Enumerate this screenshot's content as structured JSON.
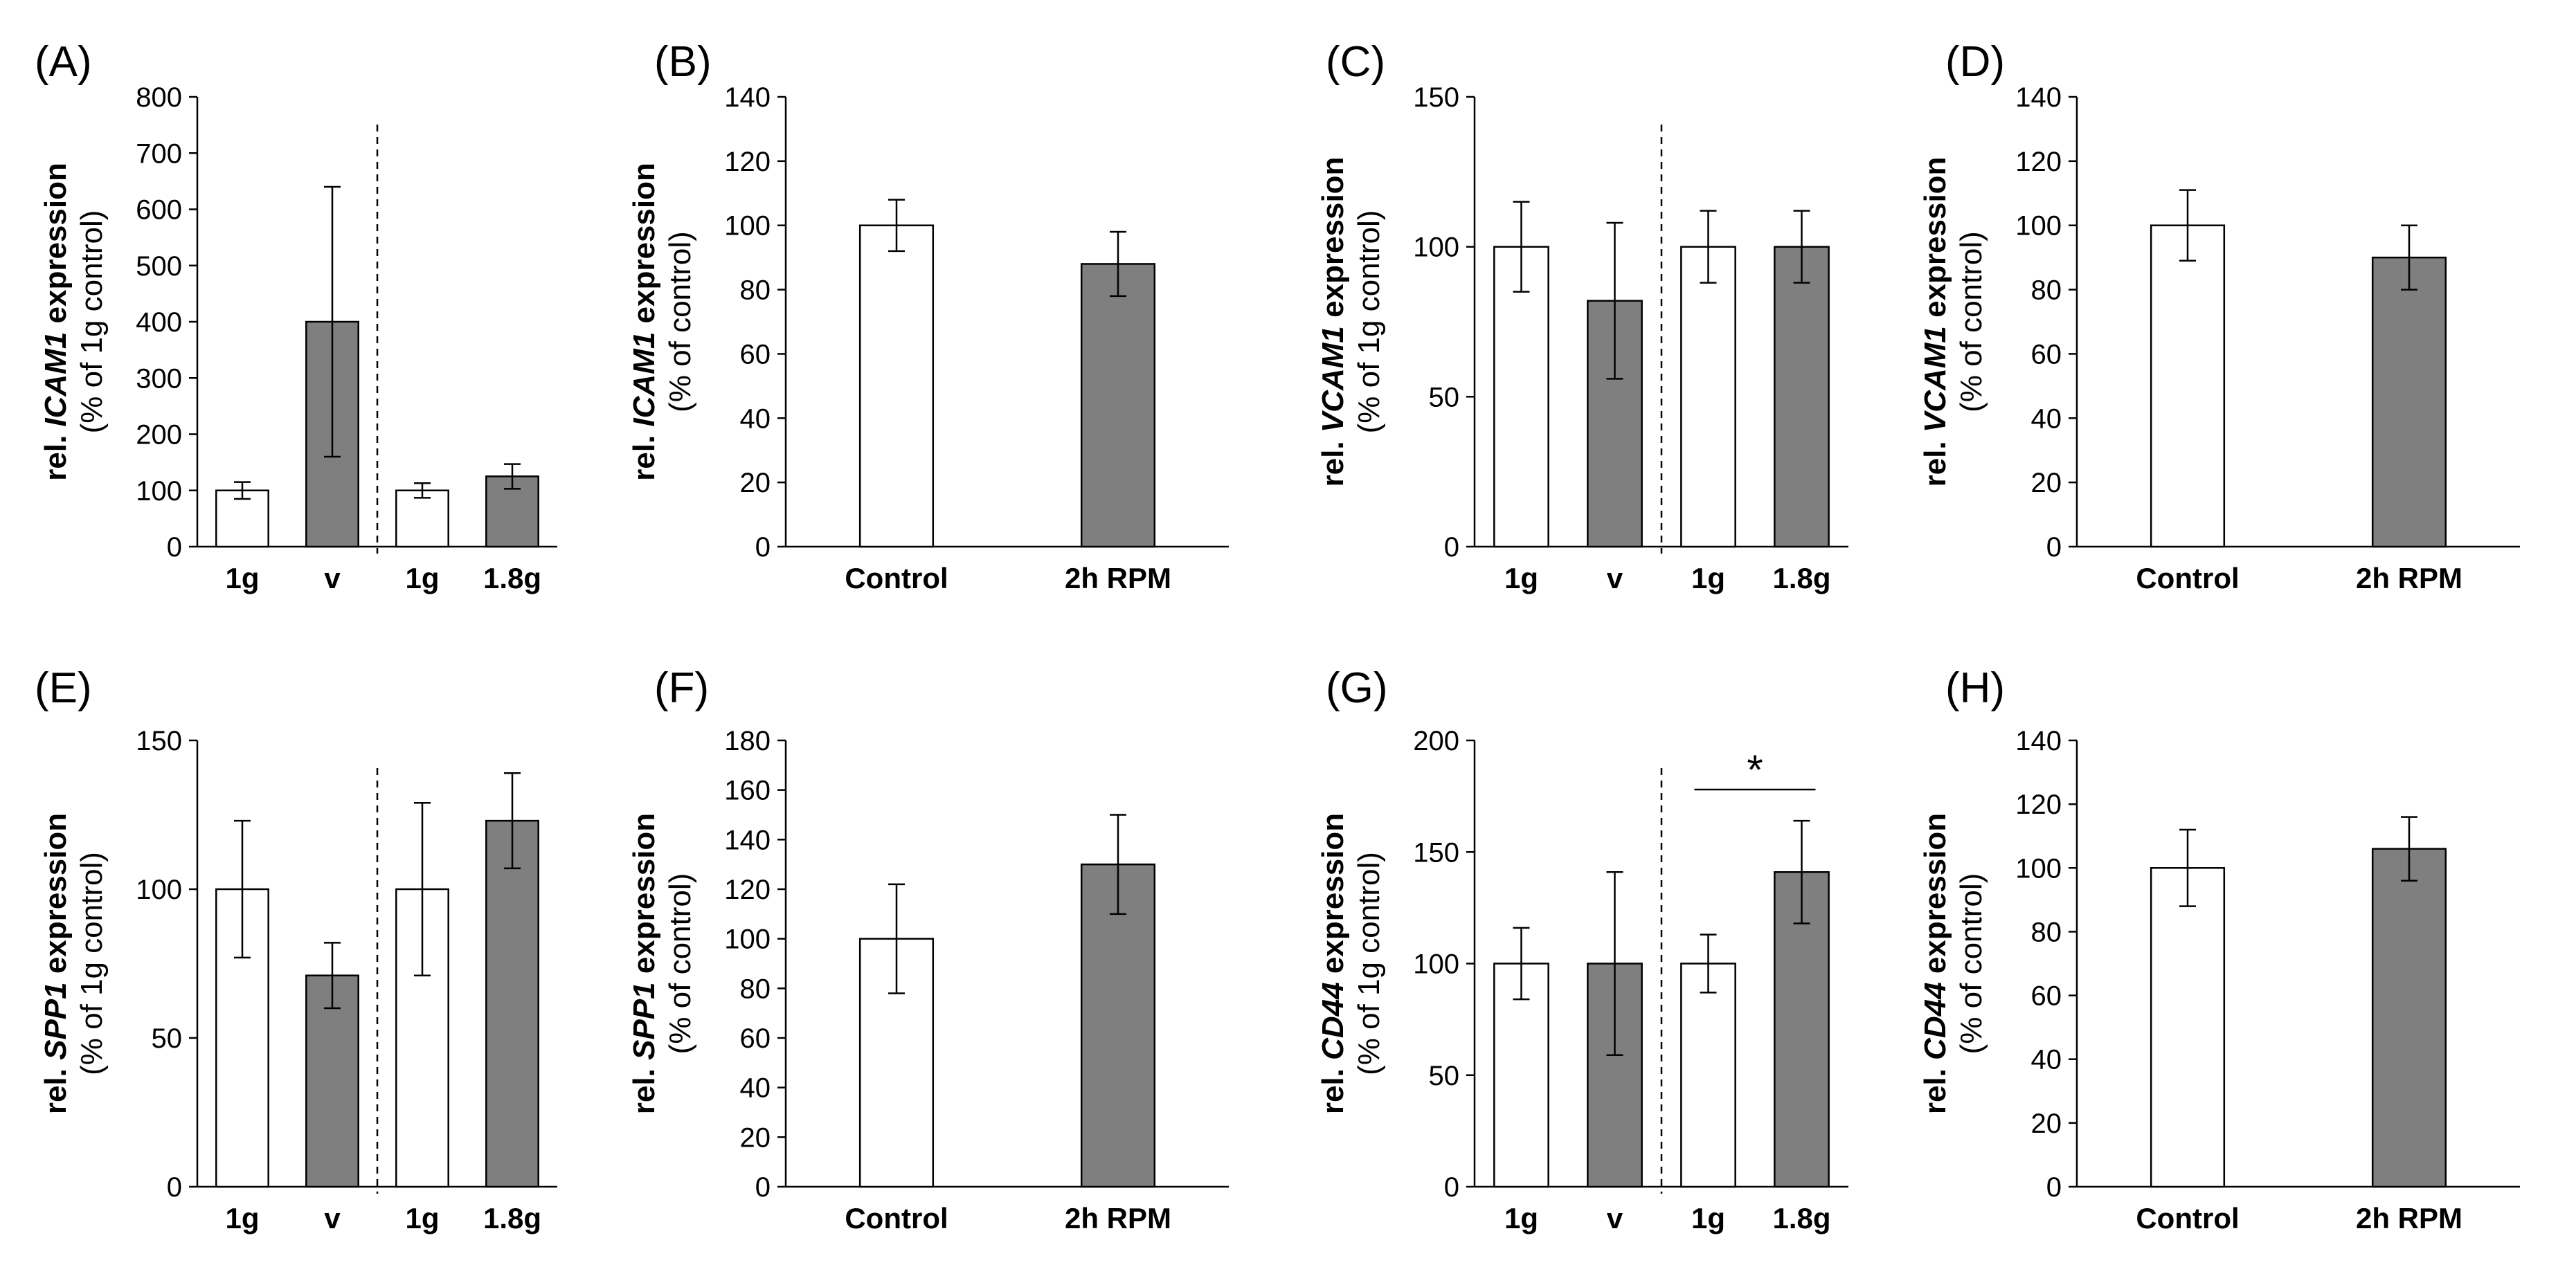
{
  "chart_data": [
    {
      "panel": "(A)",
      "type": "bar",
      "ylabel_prefix": "rel. ",
      "ylabel_gene": "ICAM1",
      "ylabel_suffix": " expression",
      "ylabel_sub": "(% of 1g control)",
      "ylim": [
        0,
        800
      ],
      "yticks": [
        0,
        100,
        200,
        300,
        400,
        500,
        600,
        700,
        800
      ],
      "categories": [
        "1g",
        "v",
        "1g",
        "1.8g"
      ],
      "values": [
        100,
        400,
        100,
        125
      ],
      "errors": [
        15,
        240,
        13,
        22
      ],
      "bar_colors": [
        "#ffffff",
        "#7f7f7f",
        "#ffffff",
        "#7f7f7f"
      ],
      "separator_after": 1
    },
    {
      "panel": "(B)",
      "type": "bar",
      "ylabel_prefix": "rel. ",
      "ylabel_gene": "ICAM1",
      "ylabel_suffix": " expression",
      "ylabel_sub": "(% of control)",
      "ylim": [
        0,
        140
      ],
      "yticks": [
        0,
        20,
        40,
        60,
        80,
        100,
        120,
        140
      ],
      "categories": [
        "Control",
        "2h RPM"
      ],
      "values": [
        100,
        88
      ],
      "errors": [
        8,
        10
      ],
      "bar_colors": [
        "#ffffff",
        "#7f7f7f"
      ]
    },
    {
      "panel": "(C)",
      "type": "bar",
      "ylabel_prefix": "rel. ",
      "ylabel_gene": "VCAM1",
      "ylabel_suffix": " expression",
      "ylabel_sub": "(% of 1g control)",
      "ylim": [
        0,
        150
      ],
      "yticks": [
        0,
        50,
        100,
        150
      ],
      "categories": [
        "1g",
        "v",
        "1g",
        "1.8g"
      ],
      "values": [
        100,
        82,
        100,
        100
      ],
      "errors": [
        15,
        26,
        12,
        12
      ],
      "bar_colors": [
        "#ffffff",
        "#7f7f7f",
        "#ffffff",
        "#7f7f7f"
      ],
      "separator_after": 1
    },
    {
      "panel": "(D)",
      "type": "bar",
      "ylabel_prefix": "rel. ",
      "ylabel_gene": "VCAM1",
      "ylabel_suffix": " expression",
      "ylabel_sub": "(% of control)",
      "ylim": [
        0,
        140
      ],
      "yticks": [
        0,
        20,
        40,
        60,
        80,
        100,
        120,
        140
      ],
      "categories": [
        "Control",
        "2h RPM"
      ],
      "values": [
        100,
        90
      ],
      "errors": [
        11,
        10
      ],
      "bar_colors": [
        "#ffffff",
        "#7f7f7f"
      ]
    },
    {
      "panel": "(E)",
      "type": "bar",
      "ylabel_prefix": "rel. ",
      "ylabel_gene": "SPP1",
      "ylabel_suffix": " expression",
      "ylabel_sub": "(% of 1g control)",
      "ylim": [
        0,
        150
      ],
      "yticks": [
        0,
        50,
        100,
        150
      ],
      "categories": [
        "1g",
        "v",
        "1g",
        "1.8g"
      ],
      "values": [
        100,
        71,
        100,
        123
      ],
      "errors": [
        23,
        11,
        29,
        16
      ],
      "bar_colors": [
        "#ffffff",
        "#7f7f7f",
        "#ffffff",
        "#7f7f7f"
      ],
      "separator_after": 1
    },
    {
      "panel": "(F)",
      "type": "bar",
      "ylabel_prefix": "rel. ",
      "ylabel_gene": "SPP1",
      "ylabel_suffix": " expression",
      "ylabel_sub": "(% of control)",
      "ylim": [
        0,
        180
      ],
      "yticks": [
        0,
        20,
        40,
        60,
        80,
        100,
        120,
        140,
        160,
        180
      ],
      "categories": [
        "Control",
        "2h RPM"
      ],
      "values": [
        100,
        130
      ],
      "errors": [
        22,
        20
      ],
      "bar_colors": [
        "#ffffff",
        "#7f7f7f"
      ]
    },
    {
      "panel": "(G)",
      "type": "bar",
      "ylabel_prefix": "rel. ",
      "ylabel_gene": "CD44",
      "ylabel_suffix": " expression",
      "ylabel_sub": "(% of 1g control)",
      "ylim": [
        0,
        200
      ],
      "yticks": [
        0,
        50,
        100,
        150,
        200
      ],
      "categories": [
        "1g",
        "v",
        "1g",
        "1.8g"
      ],
      "values": [
        100,
        100,
        100,
        141
      ],
      "errors": [
        16,
        41,
        13,
        23
      ],
      "bar_colors": [
        "#ffffff",
        "#7f7f7f",
        "#ffffff",
        "#7f7f7f"
      ],
      "separator_after": 1,
      "significance": {
        "from": 2,
        "to": 3,
        "label": "*",
        "y": 178
      }
    },
    {
      "panel": "(H)",
      "type": "bar",
      "ylabel_prefix": "rel. ",
      "ylabel_gene": "CD44",
      "ylabel_suffix": " expression",
      "ylabel_sub": "(% of control)",
      "ylim": [
        0,
        140
      ],
      "yticks": [
        0,
        20,
        40,
        60,
        80,
        100,
        120,
        140
      ],
      "categories": [
        "Control",
        "2h RPM"
      ],
      "values": [
        100,
        106
      ],
      "errors": [
        12,
        10
      ],
      "bar_colors": [
        "#ffffff",
        "#7f7f7f"
      ]
    }
  ]
}
